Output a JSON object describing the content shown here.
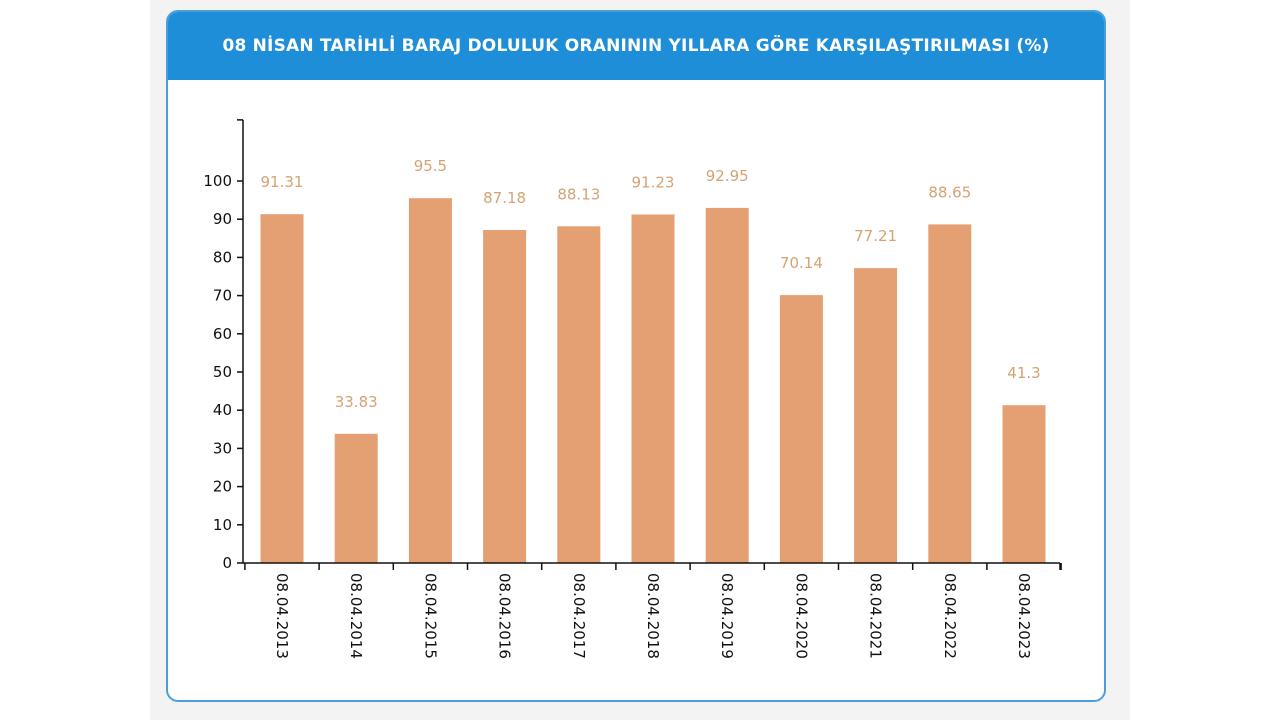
{
  "colors": {
    "header_bg": "#1f8ed8",
    "card_border": "#4a9fd8",
    "bar": "#e4a072",
    "data_label": "#d4a373",
    "axis": "#111111"
  },
  "chart_data": {
    "type": "bar",
    "title": "08 NİSAN TARİHLİ BARAJ DOLULUK ORANININ YILLARA GÖRE KARŞILAŞTIRILMASI (%)",
    "categories": [
      "08.04.2013",
      "08.04.2014",
      "08.04.2015",
      "08.04.2016",
      "08.04.2017",
      "08.04.2018",
      "08.04.2019",
      "08.04.2020",
      "08.04.2021",
      "08.04.2022",
      "08.04.2023"
    ],
    "values": [
      91.31,
      33.83,
      95.5,
      87.18,
      88.13,
      91.23,
      92.95,
      70.14,
      77.21,
      88.65,
      41.3
    ],
    "value_labels": [
      "91.31",
      "33.83",
      "95.5",
      "87.18",
      "88.13",
      "91.23",
      "92.95",
      "70.14",
      "77.21",
      "88.65",
      "41.3"
    ],
    "yticks": [
      0,
      10,
      20,
      30,
      40,
      50,
      60,
      70,
      80,
      90,
      100
    ],
    "ylim": [
      0,
      116
    ],
    "xlabel": "",
    "ylabel": "",
    "grid": false,
    "legend": "none"
  }
}
